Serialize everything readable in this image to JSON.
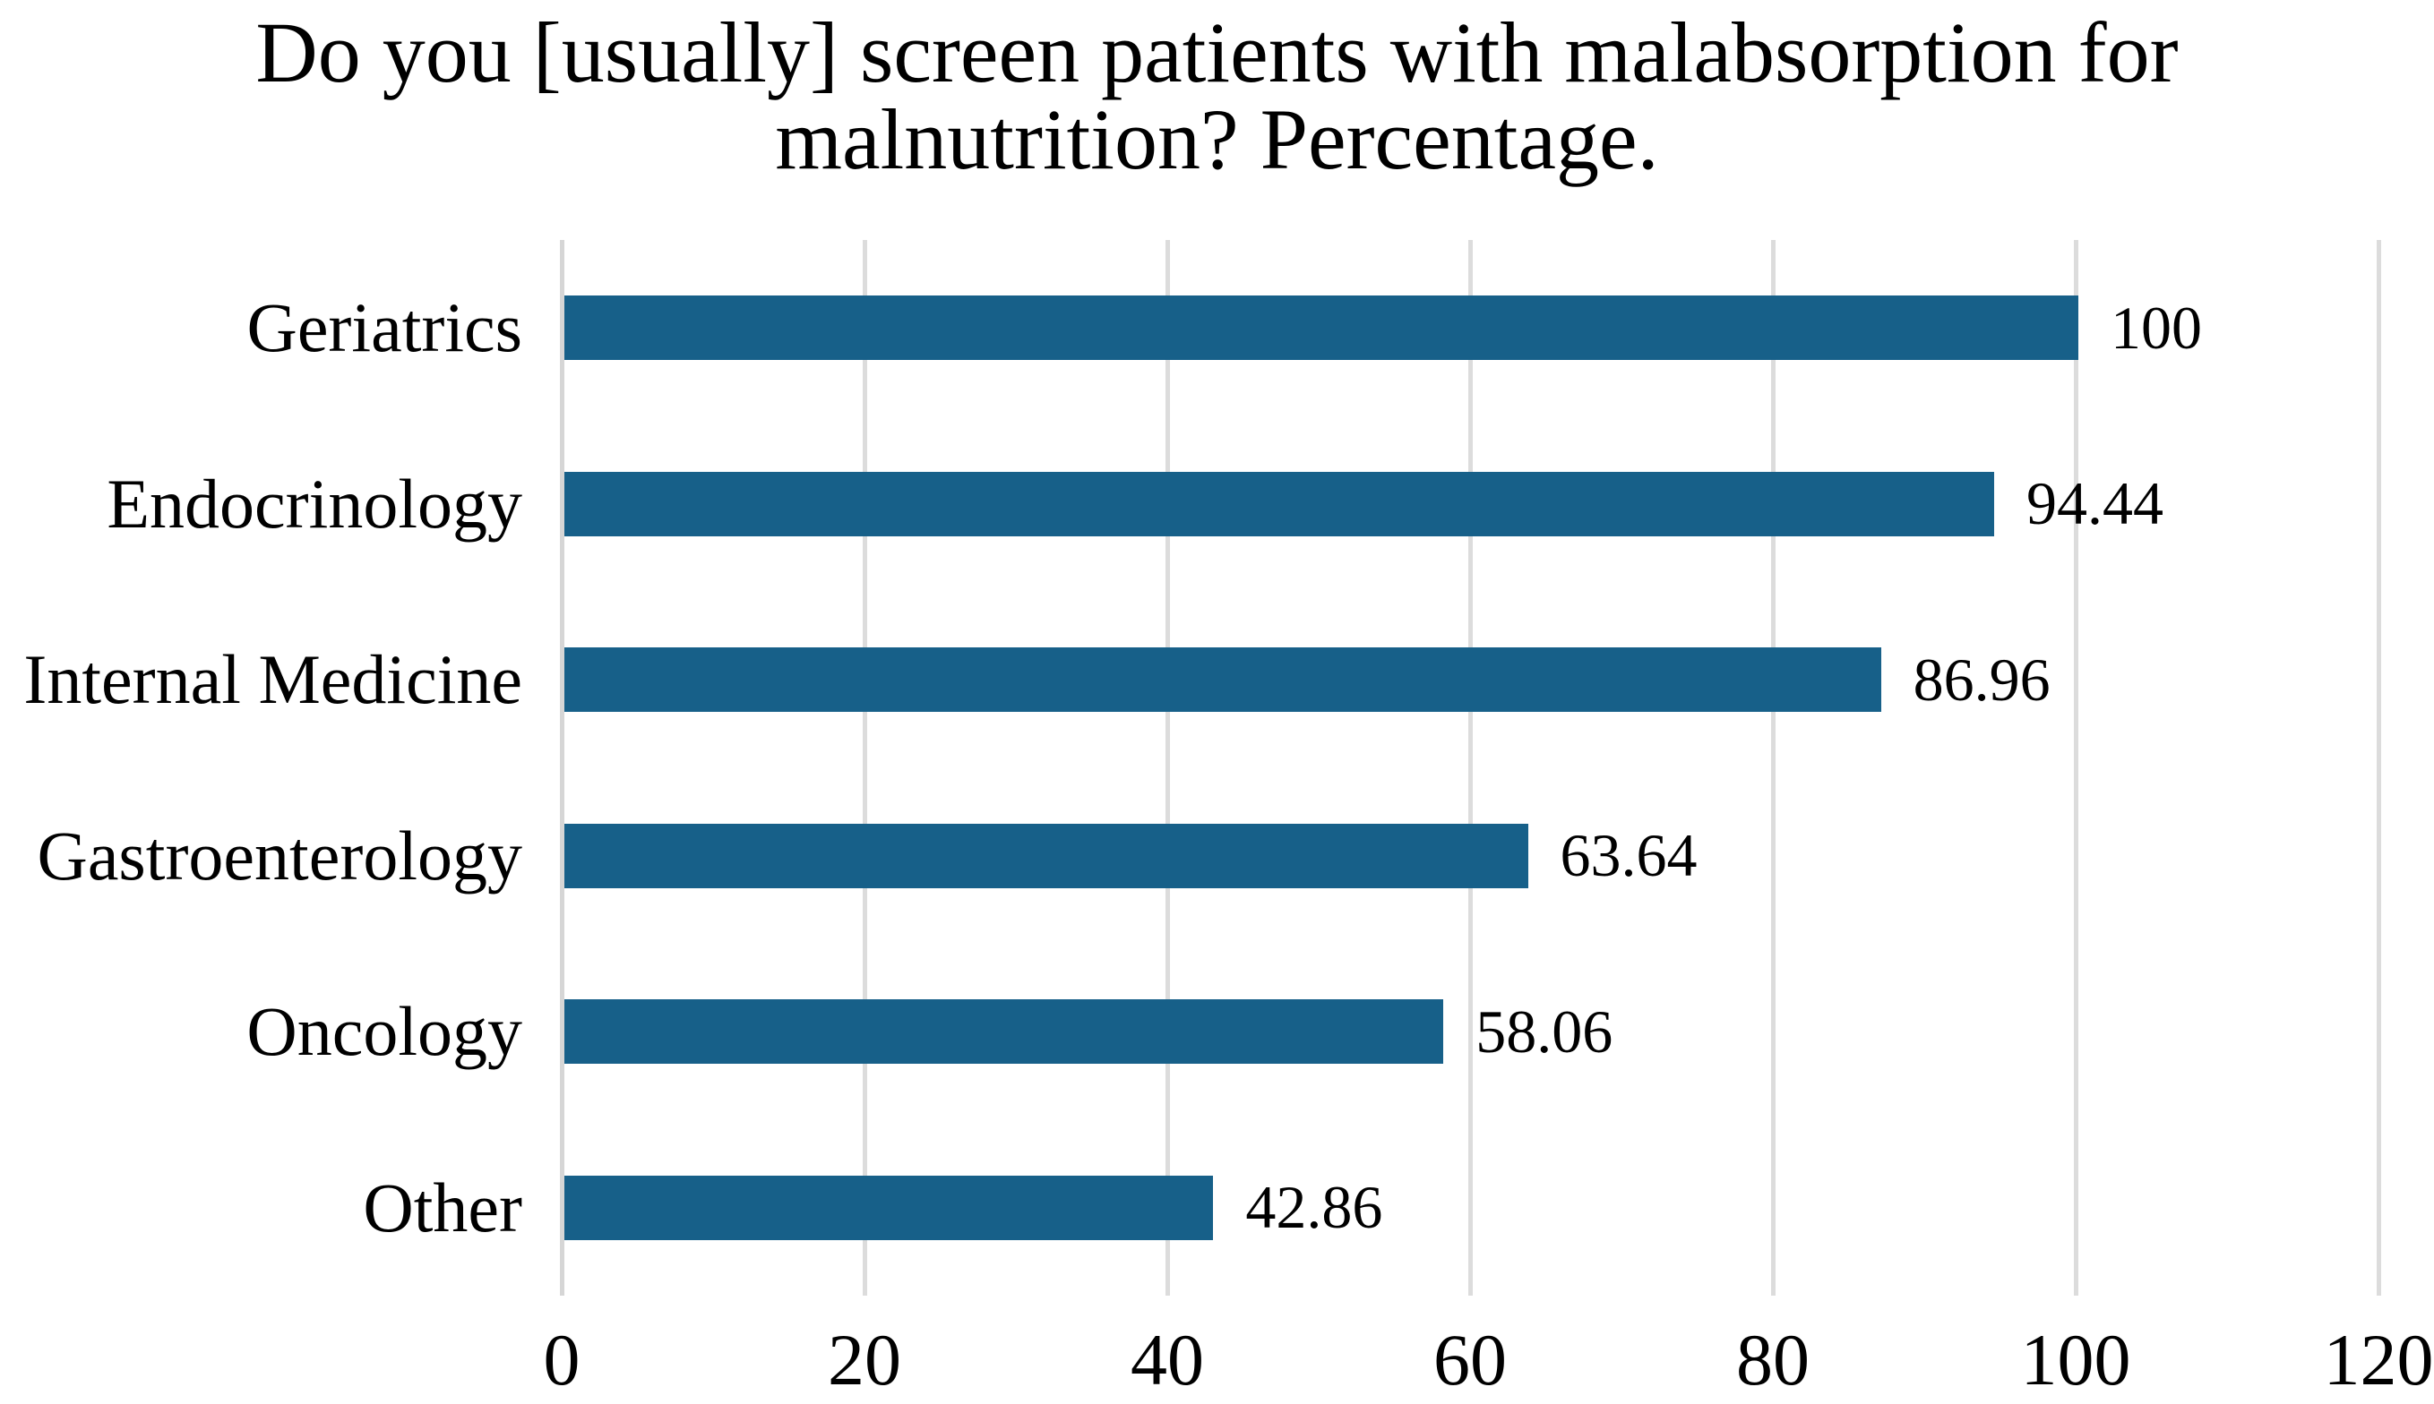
{
  "chart_data": {
    "type": "bar",
    "orientation": "horizontal",
    "title": "Do you [usually] screen patients with malabsorption for malnutrition? Percentage.",
    "title_lines": [
      "Do you [usually] screen patients with malabsorption for",
      "malnutrition? Percentage."
    ],
    "categories": [
      "Geriatrics",
      "Endocrinology",
      "Internal Medicine",
      "Gastroenterology",
      "Oncology",
      "Other"
    ],
    "values": [
      100,
      94.44,
      86.96,
      63.64,
      58.06,
      42.86
    ],
    "value_labels": [
      "100",
      "94.44",
      "86.96",
      "63.64",
      "58.06",
      "42.86"
    ],
    "xlabel": "",
    "ylabel": "",
    "xlim": [
      0,
      120
    ],
    "x_ticks": [
      0,
      20,
      40,
      60,
      80,
      100,
      120
    ],
    "grid": true,
    "legend": false,
    "colors": {
      "bar": "#176089",
      "gridline": "#dcdcdc",
      "axis_line": "#d6d6d6",
      "text": "#000000",
      "background": "#ffffff"
    }
  }
}
